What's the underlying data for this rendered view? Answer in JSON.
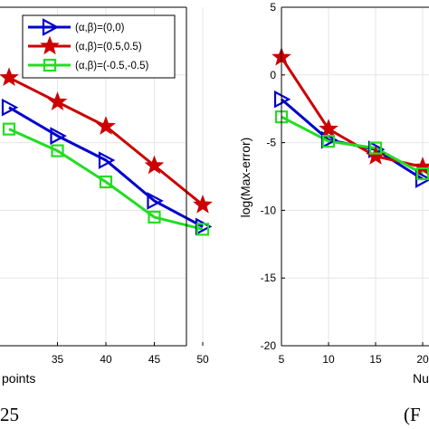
{
  "colors": {
    "blue": "#0000cc",
    "red": "#cc0000",
    "green": "#22dd22",
    "axis": "#000000",
    "grid": "#e6e6e6"
  },
  "left_panel": {
    "caption": "25",
    "chart_data": {
      "type": "line",
      "xlabel": "points",
      "ylabel": "",
      "xlim": [
        30,
        50
      ],
      "ylim": [
        -20,
        5
      ],
      "xticks": [
        "35",
        "40",
        "45",
        "50"
      ],
      "grid": true,
      "legend_position": "top-right",
      "series": [
        {
          "name": "(α,β)=(0,0)",
          "color": "blue",
          "marker": "triangle-right",
          "x": [
            30,
            35,
            40,
            45,
            50
          ],
          "y": [
            -2.4,
            -4.5,
            -6.3,
            -9.3,
            -11.2
          ]
        },
        {
          "name": "(α,β)=(0.5,0.5)",
          "color": "red",
          "marker": "star",
          "x": [
            30,
            35,
            40,
            45,
            50
          ],
          "y": [
            -0.2,
            -2.0,
            -3.8,
            -6.7,
            -9.6
          ]
        },
        {
          "name": "(α,β)=(-0.5,-0.5)",
          "color": "green",
          "marker": "square",
          "x": [
            30,
            35,
            40,
            45,
            50
          ],
          "y": [
            -4.0,
            -5.6,
            -7.9,
            -10.5,
            -11.4
          ]
        }
      ]
    }
  },
  "right_panel": {
    "caption": "(F",
    "chart_data": {
      "type": "line",
      "xlabel": "Nu",
      "ylabel": "log(Max-error)",
      "xlim": [
        5,
        21
      ],
      "ylim": [
        -20,
        5
      ],
      "yticks": [
        "5",
        "0",
        "-5",
        "-10",
        "-15",
        "-20"
      ],
      "xticks": [
        "5",
        "10",
        "15",
        "20"
      ],
      "grid": true,
      "series": [
        {
          "color": "blue",
          "marker": "triangle-right",
          "x": [
            5,
            10,
            15,
            20
          ],
          "y": [
            -1.8,
            -4.8,
            -5.5,
            -7.7
          ]
        },
        {
          "color": "red",
          "marker": "star",
          "x": [
            5,
            10,
            15,
            20
          ],
          "y": [
            1.3,
            -4.0,
            -6.0,
            -6.8
          ]
        },
        {
          "color": "green",
          "marker": "square",
          "x": [
            5,
            10,
            15,
            20
          ],
          "y": [
            -3.1,
            -4.9,
            -5.4,
            -7.3
          ]
        }
      ]
    }
  }
}
